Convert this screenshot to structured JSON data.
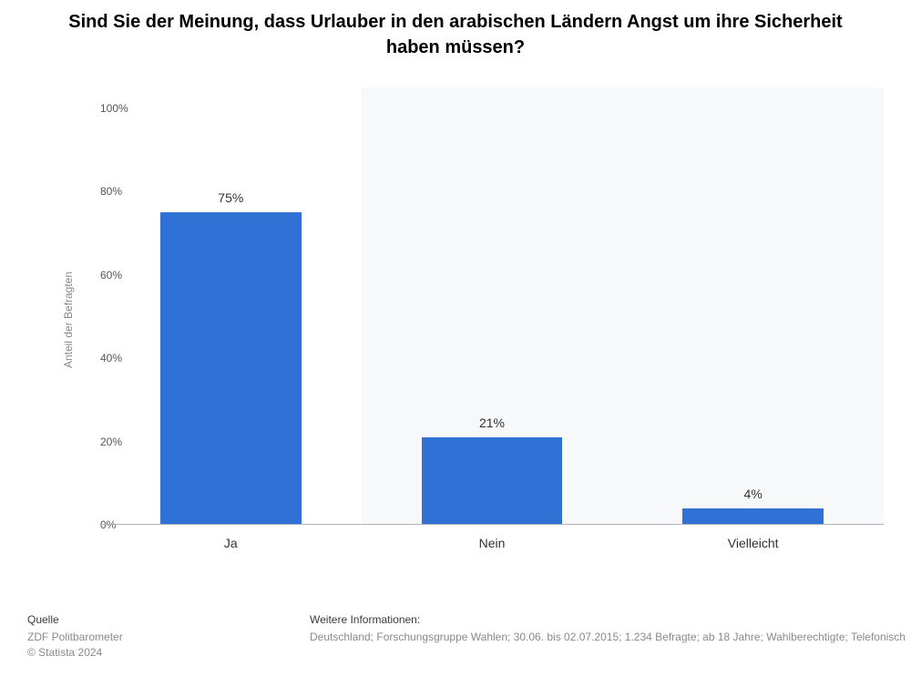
{
  "title": "Sind Sie der Meinung, dass Urlauber in den arabischen Ländern Angst um ihre Sicherheit haben müssen?",
  "chart": {
    "type": "bar",
    "y_axis_label": "Anteil der Befragten",
    "ylim": [
      0,
      105
    ],
    "yticks": [
      0,
      20,
      40,
      60,
      80,
      100
    ],
    "ytick_labels": [
      "0%",
      "20%",
      "40%",
      "60%",
      "80%",
      "100%"
    ],
    "categories": [
      "Ja",
      "Nein",
      "Vielleicht"
    ],
    "values": [
      75,
      21,
      4
    ],
    "value_labels": [
      "75%",
      "21%",
      "4%"
    ],
    "bar_color": "#2f71d4",
    "band_colors": [
      "#ffffff",
      "#f7f8f9",
      "#f7f8f9"
    ],
    "band_width_pct": 33.333,
    "bar_width_pct": 18,
    "background_color": "#ffffff",
    "axis_line_color": "#b0b5bd",
    "tick_color": "#555555",
    "label_fontsize": 14,
    "title_fontsize": 20,
    "tick_fontsize": 12
  },
  "footer": {
    "source_title": "Quelle",
    "source_body_1": "ZDF Politbarometer",
    "source_body_2": "© Statista 2024",
    "info_title": "Weitere Informationen:",
    "info_body": "Deutschland; Forschungsgruppe Wahlen; 30.06. bis 02.07.2015; 1.234 Befragte; ab 18 Jahre; Wahlberechtigte; Telefonisch"
  }
}
